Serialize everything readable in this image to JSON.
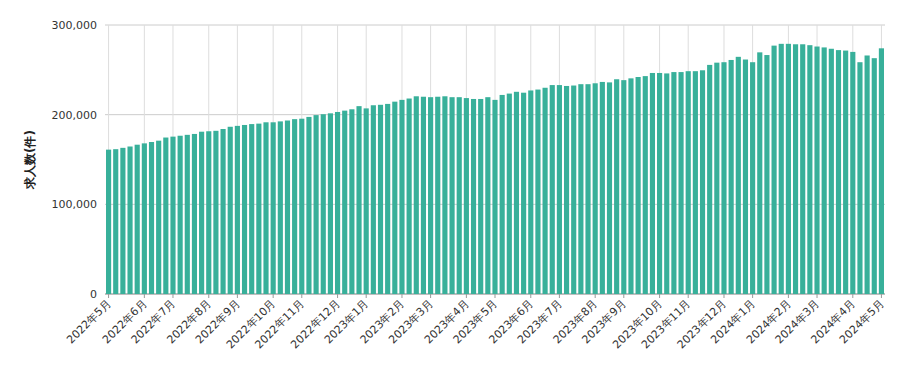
{
  "chart_data": {
    "type": "bar",
    "y_label": "求人数(件)",
    "categories": [
      "2022年5月",
      null,
      null,
      null,
      null,
      "2022年6月",
      null,
      null,
      null,
      "2022年7月",
      null,
      null,
      null,
      null,
      "2022年8月",
      null,
      null,
      null,
      "2022年9月",
      null,
      null,
      null,
      null,
      "2022年10月",
      null,
      null,
      null,
      "2022年11月",
      null,
      null,
      null,
      null,
      "2022年12月",
      null,
      null,
      null,
      "2023年1月",
      null,
      null,
      null,
      null,
      "2023年2月",
      null,
      null,
      null,
      "2023年3月",
      null,
      null,
      null,
      null,
      "2023年4月",
      null,
      null,
      null,
      "2023年5月",
      null,
      null,
      null,
      null,
      "2023年6月",
      null,
      null,
      null,
      "2023年7月",
      null,
      null,
      null,
      null,
      "2023年8月",
      null,
      null,
      null,
      "2023年9月",
      null,
      null,
      null,
      null,
      "2023年10月",
      null,
      null,
      null,
      "2023年11月",
      null,
      null,
      null,
      null,
      "2023年12月",
      null,
      null,
      null,
      "2024年1月",
      null,
      null,
      null,
      null,
      "2024年2月",
      null,
      null,
      null,
      "2024年3月",
      null,
      null,
      null,
      null,
      "2024年4月",
      null,
      null,
      null,
      "2024年5月"
    ],
    "values": [
      161000,
      161500,
      163000,
      164500,
      166500,
      168000,
      169500,
      171000,
      174500,
      175500,
      176500,
      177500,
      178500,
      181000,
      181500,
      182000,
      184000,
      186500,
      187500,
      188500,
      189500,
      190000,
      191500,
      191500,
      192500,
      193500,
      195000,
      195500,
      197500,
      199500,
      200500,
      201500,
      203000,
      204500,
      206000,
      209500,
      207000,
      210500,
      211000,
      212000,
      214500,
      216500,
      218000,
      220500,
      220000,
      219500,
      220000,
      220500,
      219500,
      219500,
      218500,
      217500,
      217500,
      219500,
      216500,
      222000,
      223500,
      225500,
      224500,
      227000,
      228000,
      230000,
      233000,
      233000,
      232000,
      232500,
      234000,
      234000,
      235000,
      236500,
      236000,
      239500,
      238500,
      240500,
      242000,
      243000,
      246500,
      246500,
      246000,
      247500,
      247500,
      248500,
      248500,
      249500,
      255500,
      258000,
      258500,
      261000,
      264500,
      261500,
      258500,
      269500,
      266500,
      277000,
      279000,
      279000,
      278500,
      278500,
      277500,
      276000,
      275000,
      273500,
      272000,
      271500,
      270000,
      258500,
      266000,
      263000,
      274000
    ],
    "color": "#38b09a",
    "ylim": [
      0,
      300000
    ],
    "yticks": [
      0,
      {
        "value": 100000,
        "label": "100,000"
      },
      {
        "value": 200000,
        "label": "200,000"
      },
      {
        "value": 300000,
        "label": "300,000"
      }
    ],
    "grid": true
  }
}
